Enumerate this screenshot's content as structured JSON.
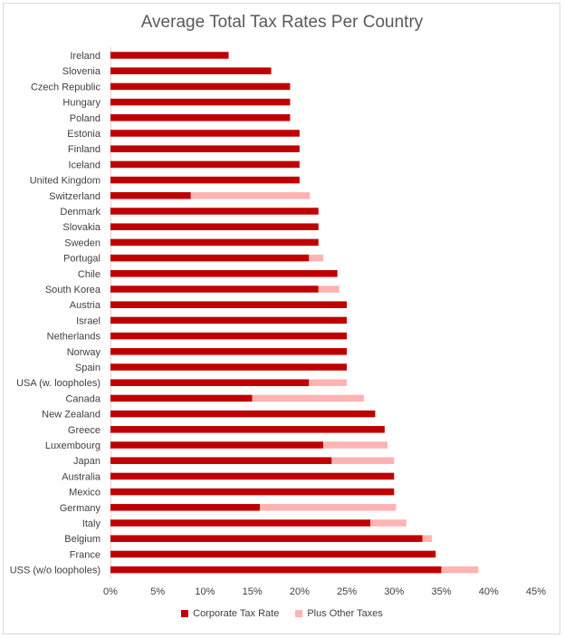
{
  "chart_data": {
    "type": "bar",
    "orientation": "horizontal",
    "stacked": true,
    "title": "Average Total Tax Rates Per Country",
    "xlabel": "",
    "ylabel": "",
    "xlim": [
      0,
      45
    ],
    "x_ticks": [
      "0%",
      "5%",
      "10%",
      "15%",
      "20%",
      "25%",
      "30%",
      "35%",
      "40%",
      "45%"
    ],
    "grid": false,
    "legend_position": "bottom",
    "categories": [
      "Ireland",
      "Slovenia",
      "Czech Republic",
      "Hungary",
      "Poland",
      "Estonia",
      "Finland",
      "Iceland",
      "United Kingdom",
      "Switzerland",
      "Denmark",
      "Slovakia",
      "Sweden",
      "Portugal",
      "Chile",
      "South Korea",
      "Austria",
      "Israel",
      "Netherlands",
      "Norway",
      "Spain",
      "USA (w. loopholes)",
      "Canada",
      "New Zealand",
      "Greece",
      "Luxembourg",
      "Japan",
      "Australia",
      "Mexico",
      "Germany",
      "Italy",
      "Belgium",
      "France",
      "USS (w/o loopholes)"
    ],
    "series": [
      {
        "name": "Corporate Tax Rate",
        "color": "#c00000",
        "values": [
          12.5,
          17,
          19,
          19,
          19,
          20,
          20,
          20,
          20,
          8.5,
          22,
          22,
          22,
          21,
          24,
          22,
          25,
          25,
          25,
          25,
          25,
          21,
          15,
          28,
          29,
          22.5,
          23.4,
          30,
          30,
          15.8,
          27.5,
          33,
          34.4,
          35
        ]
      },
      {
        "name": "Plus Other Taxes",
        "color": "#ffb3b3",
        "values": [
          0,
          0,
          0,
          0,
          0,
          0,
          0,
          0,
          0,
          12.6,
          0,
          0,
          0,
          1.5,
          0,
          2.2,
          0,
          0,
          0,
          0,
          0,
          4,
          11.8,
          0,
          0,
          6.8,
          6.6,
          0,
          0,
          14.4,
          3.8,
          1,
          0,
          3.9
        ]
      }
    ]
  }
}
